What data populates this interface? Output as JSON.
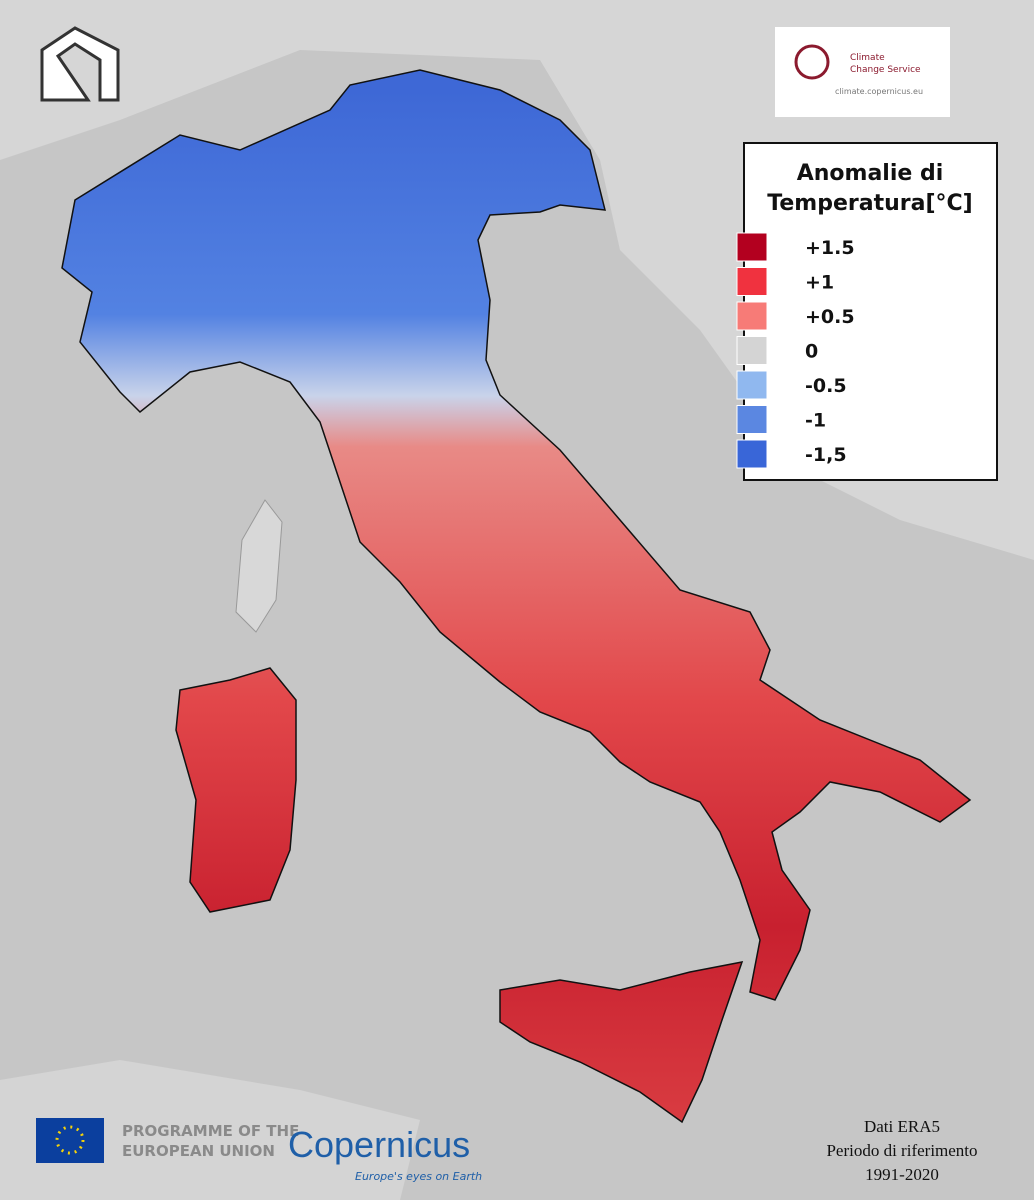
{
  "logo": {
    "name": [
      "Climate",
      "Change Service"
    ],
    "url": "climate.copernicus.eu"
  },
  "legend": {
    "title": [
      "Anomalie di",
      "Temperatura[°C]"
    ],
    "items": [
      {
        "label": "+1.5",
        "color": "#b3001f"
      },
      {
        "label": "+1",
        "color": "#f0323f"
      },
      {
        "label": "+0.5",
        "color": "#f77b77"
      },
      {
        "label": "0",
        "color": "#d4d4d4"
      },
      {
        "label": "-0.5",
        "color": "#90b8ef"
      },
      {
        "label": "-1",
        "color": "#5b87e1"
      },
      {
        "label": "-1,5",
        "color": "#3966d8"
      }
    ]
  },
  "footer": {
    "programme": [
      "PROGRAMME OF THE",
      "EUROPEAN UNION"
    ],
    "copernicus": "Copernicus",
    "tagline": "Europe's eyes on Earth",
    "source": [
      "Dati ERA5",
      "Periodo di riferimento",
      "1991-2020"
    ]
  }
}
